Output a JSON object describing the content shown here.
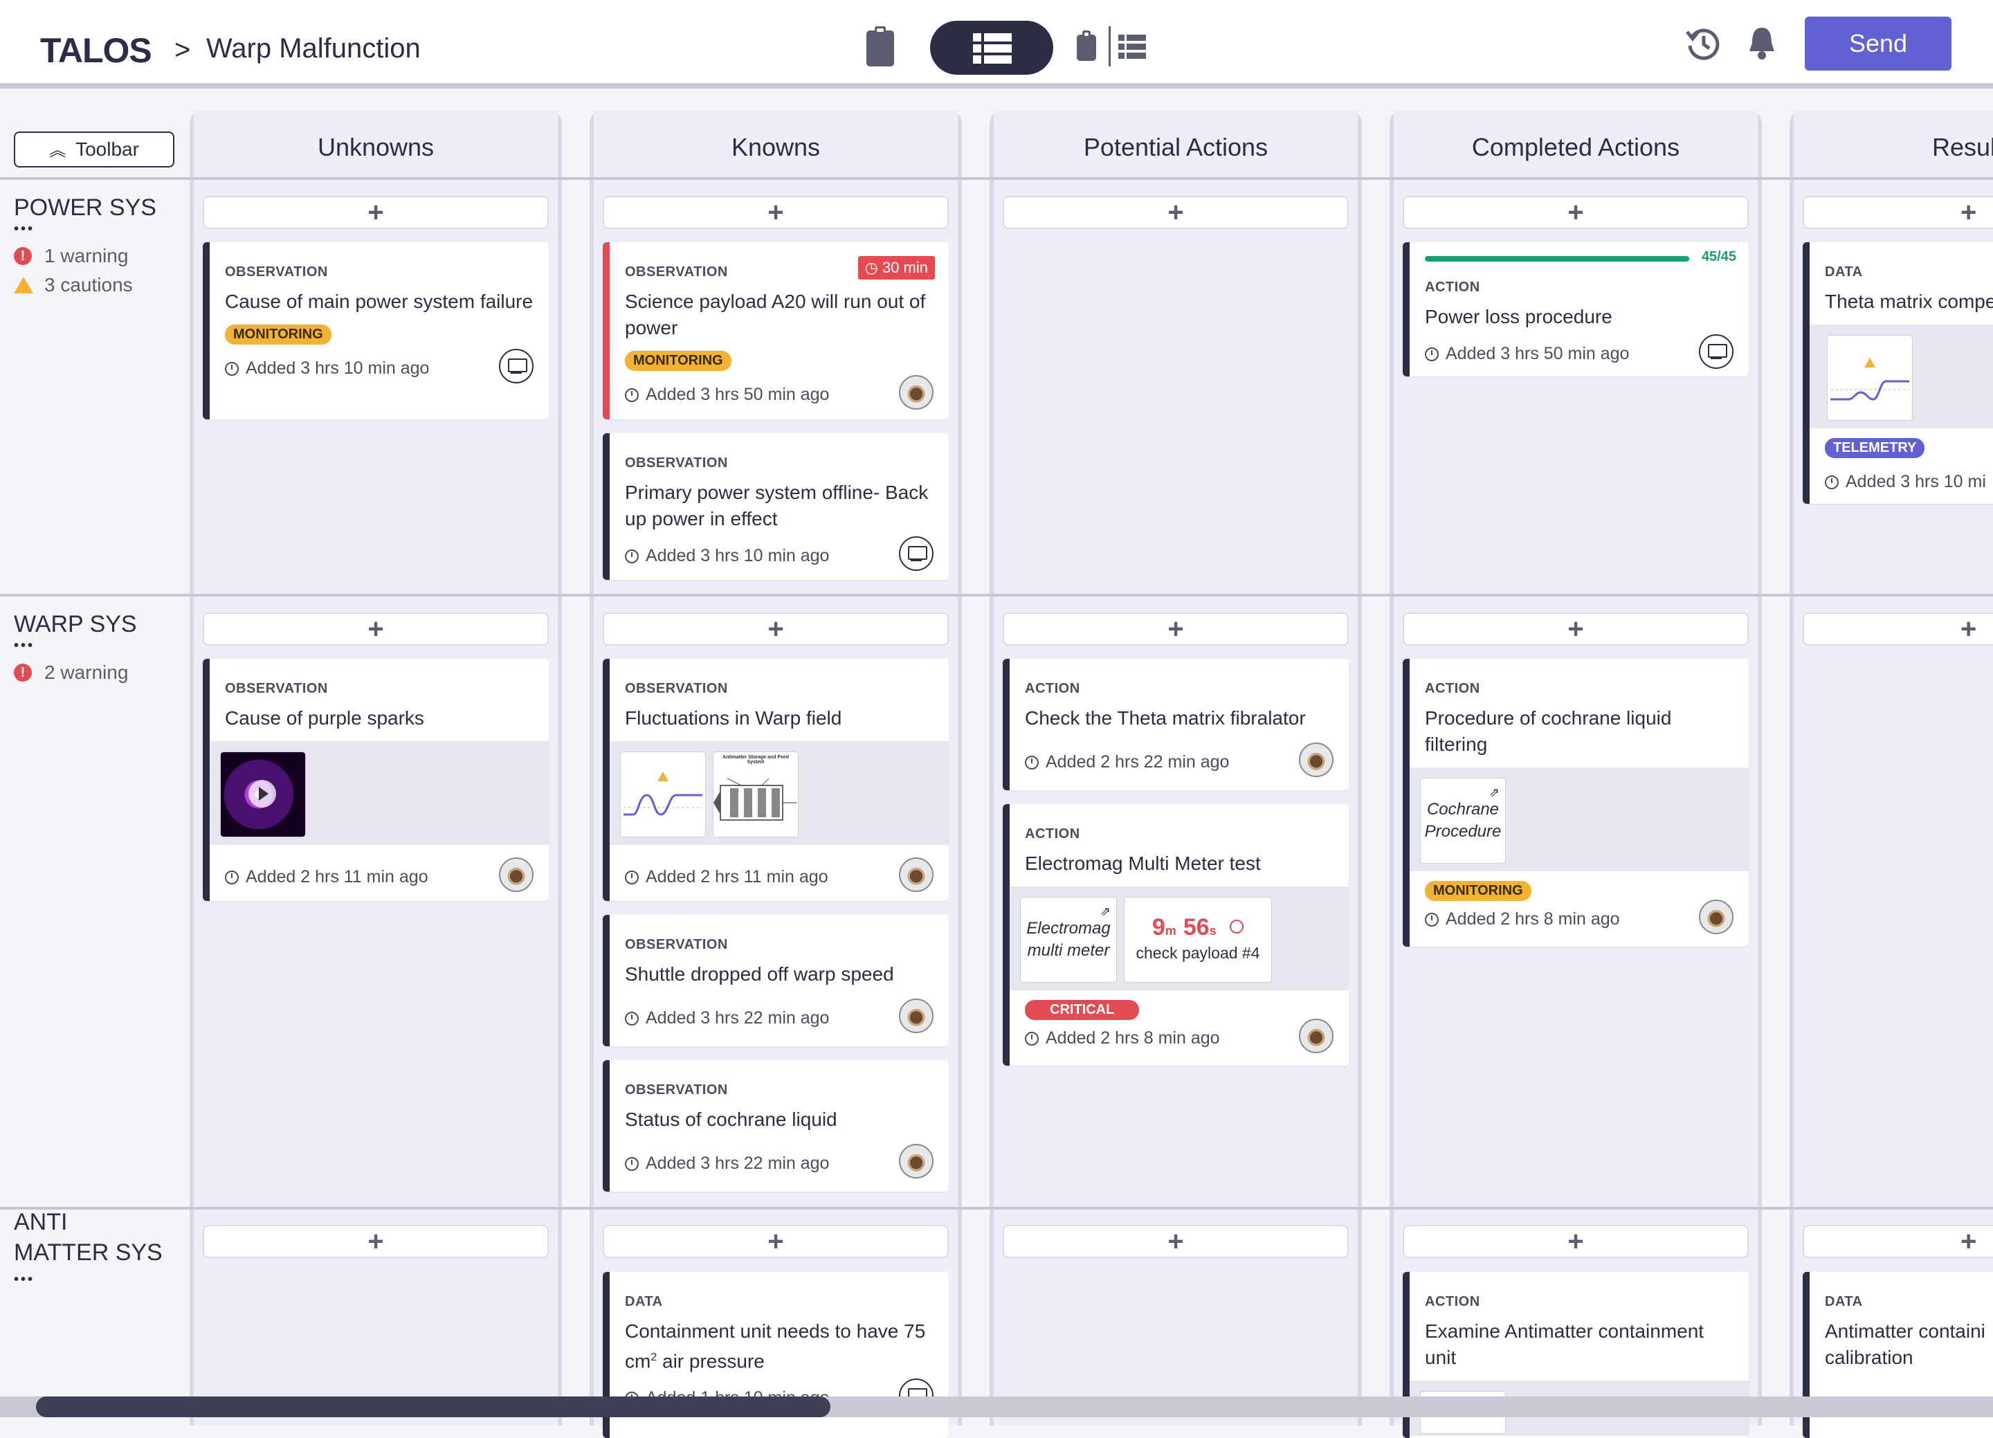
{
  "header": {
    "logo": "TALOS",
    "breadcrumb_sep": ">",
    "title": "Warp Malfunction",
    "send_label": "Send"
  },
  "toolbar_label": "Toolbar",
  "columns": [
    "Unknowns",
    "Knowns",
    "Potential Actions",
    "Completed Actions",
    "Resul"
  ],
  "rows": [
    {
      "title": "POWER SYS",
      "dots": "•••",
      "alerts": [
        {
          "kind": "warning",
          "text": "1 warning"
        },
        {
          "kind": "caution",
          "text": "3 cautions"
        }
      ]
    },
    {
      "title": "WARP SYS",
      "dots": "•••",
      "alerts": [
        {
          "kind": "warning",
          "text": "2 warning"
        }
      ]
    },
    {
      "title_line1": "ANTI",
      "title_line2": "MATTER SYS",
      "dots": "•••"
    }
  ],
  "add_symbol": "+",
  "cards": {
    "c1": {
      "type": "OBSERVATION",
      "title": "Cause of main power system failure",
      "badge": "MONITORING",
      "time": "Added 3 hrs 10 min ago"
    },
    "c2": {
      "type": "OBSERVATION",
      "title": "Science payload A20 will run out of power",
      "badge": "MONITORING",
      "time": "Added 3 hrs 50 min ago",
      "timer": "30 min"
    },
    "c3": {
      "type": "OBSERVATION",
      "title": "Primary power system offline- Back up power in effect",
      "time": "Added 3 hrs 10 min ago"
    },
    "c4": {
      "type": "ACTION",
      "title": "Power loss procedure",
      "time": "Added 3 hrs 50 min ago",
      "progress": "45/45"
    },
    "c5": {
      "type": "DATA",
      "title": "Theta matrix compe",
      "badge": "TELEMETRY",
      "time": "Added 3 hrs 10 mi"
    },
    "c6": {
      "type": "OBSERVATION",
      "title": "Cause of purple sparks",
      "time": "Added 2 hrs 11 min ago"
    },
    "c7": {
      "type": "OBSERVATION",
      "title": "Fluctuations in Warp field",
      "time": "Added 2 hrs 11 min ago",
      "diagram_title": "Antimatter Storage and Feed System"
    },
    "c8": {
      "type": "OBSERVATION",
      "title": "Shuttle dropped off warp speed",
      "time": "Added 3 hrs 22 min ago"
    },
    "c9": {
      "type": "OBSERVATION",
      "title": "Status of cochrane liquid",
      "time": "Added 3 hrs 22 min ago"
    },
    "c10": {
      "type": "ACTION",
      "title": "Check the Theta matrix fibralator",
      "time": "Added 2 hrs 22 min ago"
    },
    "c11": {
      "type": "ACTION",
      "title": "Electromag Multi Meter test",
      "doc": "Electromag multi meter",
      "timer_m": "9",
      "timer_m_unit": "m",
      "timer_s": "56",
      "timer_s_unit": "s",
      "timer_caption": "check payload #4",
      "badge": "CRITICAL",
      "time": "Added 2 hrs 8 min ago"
    },
    "c12": {
      "type": "ACTION",
      "title": "Procedure of cochrane liquid filtering",
      "doc": "Cochrane Procedure",
      "badge": "MONITORING",
      "time": "Added 2 hrs 8 min ago"
    },
    "c13": {
      "type": "DATA",
      "title_a": "Containment unit needs to have 75 cm",
      "title_sup": "2",
      "title_b": " air pressure",
      "time": "Added 1 hrs 10 min ago"
    },
    "c14": {
      "type": "ACTION",
      "title": "Examine Antimatter containment unit"
    },
    "c15": {
      "type": "DATA",
      "title": "Antimatter containi calibration"
    }
  },
  "colors": {
    "accent": "#6160d4",
    "critical": "#e34b52",
    "monitoring": "#f2b233",
    "success": "#16a36b",
    "dark": "#2a2d45"
  },
  "icons": [
    "clipboard-icon",
    "list-view-icon",
    "history-icon",
    "bell-icon",
    "clock-icon",
    "monitor-icon",
    "play-icon",
    "external-link-icon",
    "warning-icon"
  ]
}
